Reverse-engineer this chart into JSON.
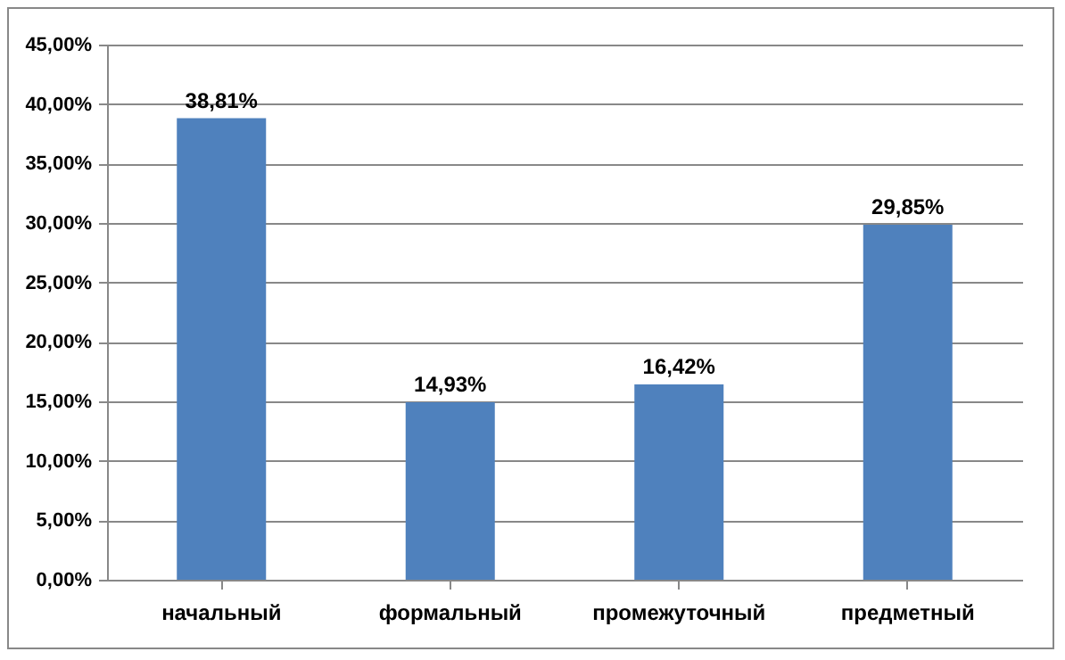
{
  "chart_data": {
    "type": "bar",
    "categories": [
      "начальный",
      "формальный",
      "промежуточный",
      "предметный"
    ],
    "values": [
      38.81,
      14.93,
      16.42,
      29.85
    ],
    "value_labels": [
      "38,81%",
      "14,93%",
      "16,42%",
      "29,85%"
    ],
    "color": "#4f81bd",
    "ylim": [
      0,
      45
    ],
    "yticks": [
      {
        "value": 0,
        "label": "0,00%"
      },
      {
        "value": 5,
        "label": "5,00%"
      },
      {
        "value": 10,
        "label": "10,00%"
      },
      {
        "value": 15,
        "label": "15,00%"
      },
      {
        "value": 20,
        "label": "20,00%"
      },
      {
        "value": 25,
        "label": "25,00%"
      },
      {
        "value": 30,
        "label": "30,00%"
      },
      {
        "value": 35,
        "label": "35,00%"
      },
      {
        "value": 40,
        "label": "40,00%"
      },
      {
        "value": 45,
        "label": "45,00%"
      }
    ],
    "grid": true
  }
}
